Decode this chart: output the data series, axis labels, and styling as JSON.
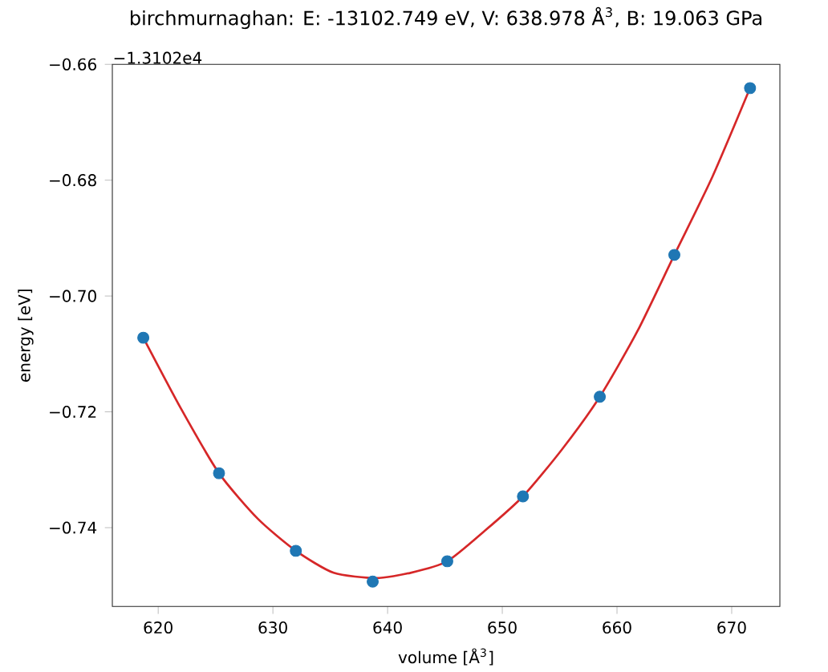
{
  "chart_data": {
    "type": "scatter",
    "title": "birchmurnaghan: E: -13102.749 eV, V: 638.978 Å$^{3}$, B: 19.063 GPa",
    "xlabel": "volume [Å$^{3}$]",
    "ylabel": "energy [eV]",
    "annotations": [
      "−1.3102e4"
    ],
    "xlim": [
      616.0,
      674.2
    ],
    "ylim": [
      -0.7536,
      -0.66
    ],
    "xticks": [
      620,
      630,
      640,
      650,
      660,
      670
    ],
    "yticks": [
      {
        "value": -0.66,
        "label": "−0.66"
      },
      {
        "value": -0.68,
        "label": "−0.68"
      },
      {
        "value": -0.7,
        "label": "−0.70"
      },
      {
        "value": -0.72,
        "label": "−0.72"
      },
      {
        "value": -0.74,
        "label": "−0.74"
      }
    ],
    "series": [
      {
        "type": "line",
        "color": "#d62728",
        "marker": "none",
        "x": [
          618.7,
          622.0,
          625.3,
          628.7,
          632.0,
          635.3,
          638.98,
          642.0,
          645.2,
          648.5,
          651.8,
          655.2,
          658.5,
          661.8,
          665.0,
          668.3,
          671.6
        ],
        "values": [
          -0.7072,
          -0.7195,
          -0.7306,
          -0.7385,
          -0.744,
          -0.7478,
          -0.7487,
          -0.7478,
          -0.7458,
          -0.7405,
          -0.7346,
          -0.7265,
          -0.7174,
          -0.706,
          -0.6929,
          -0.6795,
          -0.6641
        ]
      },
      {
        "color": "#1f77b4",
        "marker": "circle",
        "x": [
          618.7,
          625.3,
          632.0,
          638.7,
          645.2,
          651.8,
          658.5,
          665.0,
          671.6
        ],
        "values": [
          -0.7072,
          -0.7306,
          -0.744,
          -0.7493,
          -0.7458,
          -0.7346,
          -0.7174,
          -0.6929,
          -0.6641
        ]
      }
    ]
  }
}
